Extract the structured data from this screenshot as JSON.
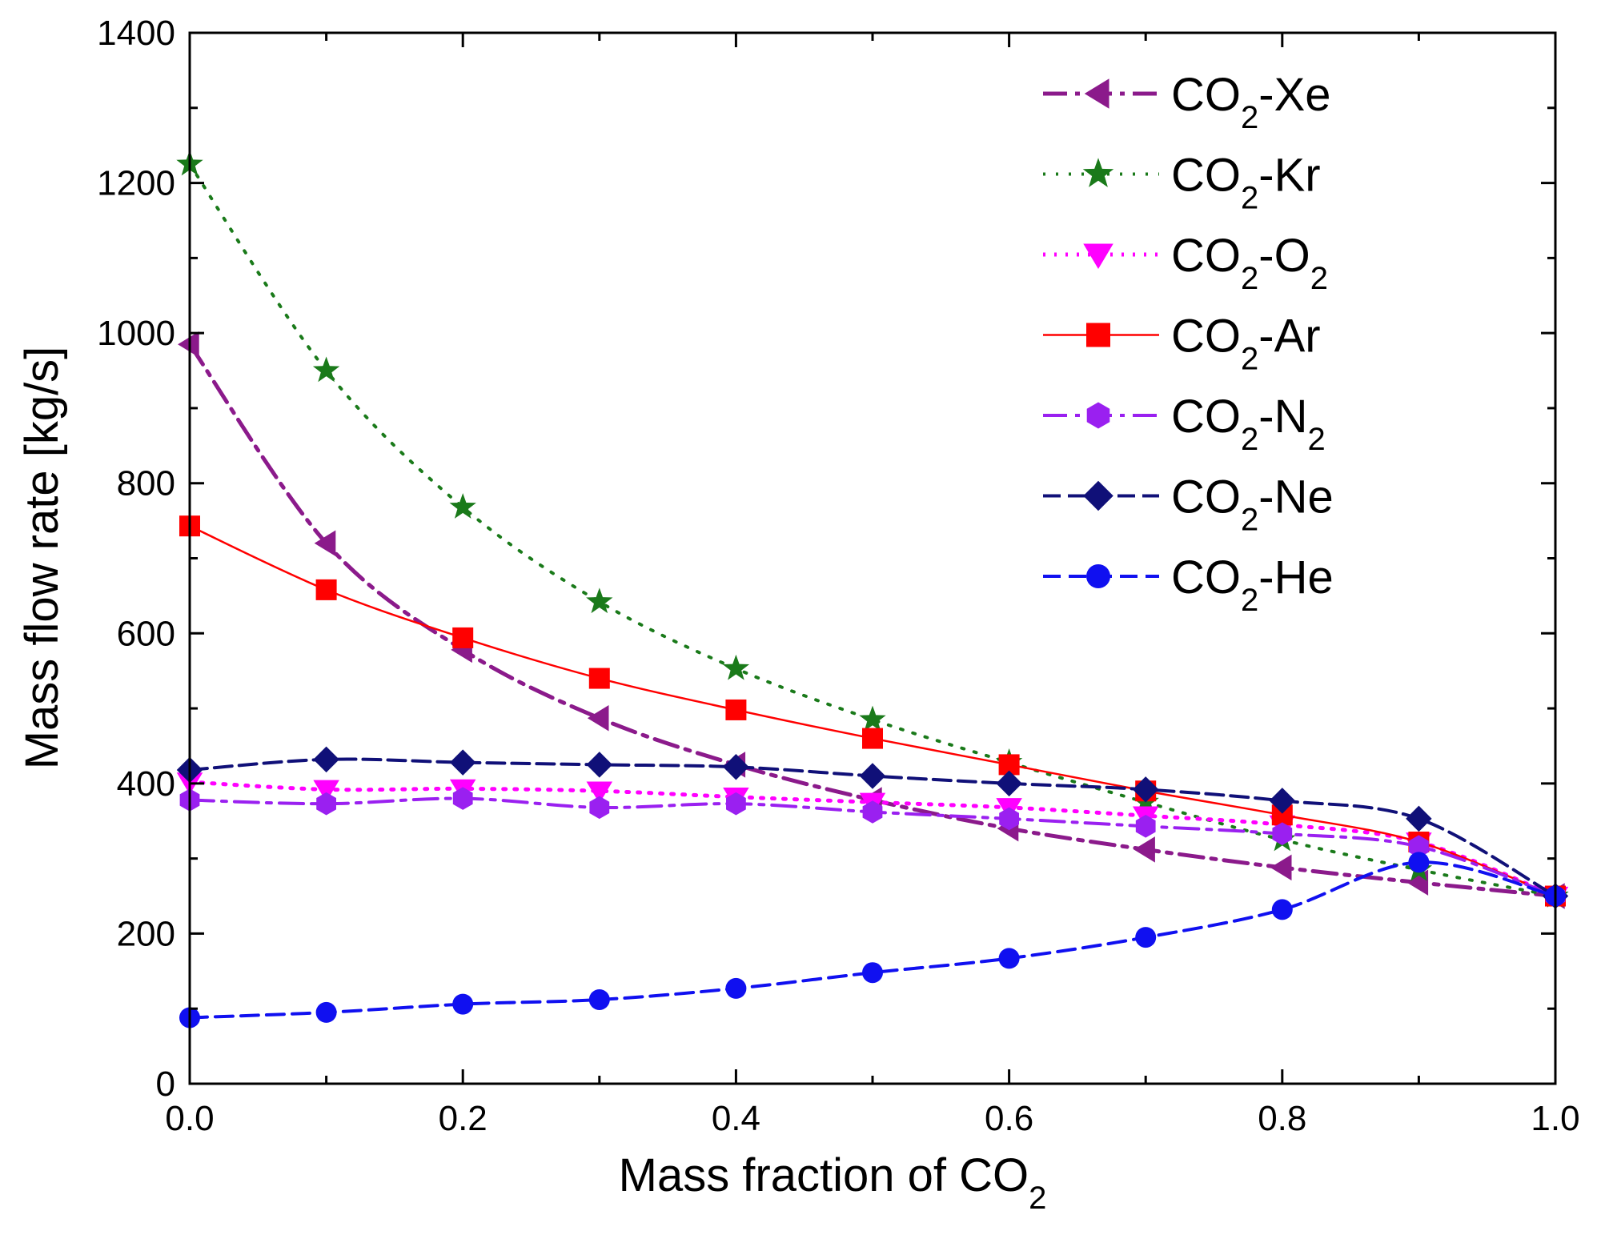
{
  "chart_data": {
    "type": "line",
    "title": "",
    "xlabel": "Mass fraction of CO",
    "xlabel_sub": "2",
    "ylabel": "Mass flow rate [kg/s]",
    "xlim": [
      0,
      1
    ],
    "ylim": [
      0,
      1400
    ],
    "xticks": [
      "0.0",
      "0.2",
      "0.4",
      "0.6",
      "0.8",
      "1.0"
    ],
    "yticks": [
      "0",
      "200",
      "400",
      "600",
      "800",
      "1000",
      "1200",
      "1400"
    ],
    "grid": false,
    "legend_position": "top-right",
    "x": [
      0,
      0.1,
      0.2,
      0.3,
      0.4,
      0.5,
      0.6,
      0.7,
      0.8,
      0.9,
      1.0
    ],
    "series": [
      {
        "name": "CO2-Xe",
        "label_main": "CO",
        "label_sub": "2",
        "label_rest": "-Xe",
        "label_rest_sub": "",
        "color": "#8b1a8b",
        "marker": "triangle-left",
        "dash": "30 10 6 10",
        "width": 5,
        "values": [
          985,
          720,
          578,
          487,
          425,
          378,
          340,
          312,
          288,
          268,
          250
        ]
      },
      {
        "name": "CO2-Kr",
        "label_main": "CO",
        "label_sub": "2",
        "label_rest": "-Kr",
        "label_rest_sub": "",
        "color": "#1a7a1a",
        "marker": "star",
        "dash": "3 13",
        "width": 4,
        "values": [
          1225,
          950,
          768,
          642,
          553,
          485,
          428,
          375,
          325,
          285,
          250
        ]
      },
      {
        "name": "CO2-O2",
        "label_main": "CO",
        "label_sub": "2",
        "label_rest": "-O",
        "label_rest_sub": "2",
        "color": "#ff00ff",
        "marker": "triangle-down",
        "dash": "3 11",
        "width": 5,
        "values": [
          402,
          392,
          393,
          390,
          382,
          375,
          368,
          357,
          345,
          322,
          250
        ]
      },
      {
        "name": "CO2-Ar",
        "label_main": "CO",
        "label_sub": "2",
        "label_rest": "-Ar",
        "label_rest_sub": "",
        "color": "#ff0000",
        "marker": "square",
        "dash": "",
        "width": 2.5,
        "values": [
          743,
          658,
          594,
          540,
          498,
          460,
          425,
          390,
          358,
          322,
          250
        ]
      },
      {
        "name": "CO2-N2",
        "label_main": "CO",
        "label_sub": "2",
        "label_rest": "-N",
        "label_rest_sub": "2",
        "color": "#9a20f0",
        "marker": "hexagon",
        "dash": "30 10 6 10",
        "width": 4,
        "values": [
          378,
          373,
          380,
          368,
          373,
          362,
          353,
          343,
          333,
          316,
          250
        ]
      },
      {
        "name": "CO2-Ne",
        "label_main": "CO",
        "label_sub": "2",
        "label_rest": "-Ne",
        "label_rest_sub": "",
        "color": "#101078",
        "marker": "diamond",
        "dash": "22 9",
        "width": 4,
        "values": [
          418,
          432,
          428,
          425,
          422,
          410,
          400,
          392,
          377,
          353,
          250
        ]
      },
      {
        "name": "CO2-He",
        "label_main": "CO",
        "label_sub": "2",
        "label_rest": "-He",
        "label_rest_sub": "",
        "color": "#1010f0",
        "marker": "circle",
        "dash": "22 10",
        "width": 4,
        "values": [
          88,
          95,
          106,
          112,
          127,
          148,
          167,
          195,
          232,
          295,
          250
        ]
      }
    ]
  }
}
